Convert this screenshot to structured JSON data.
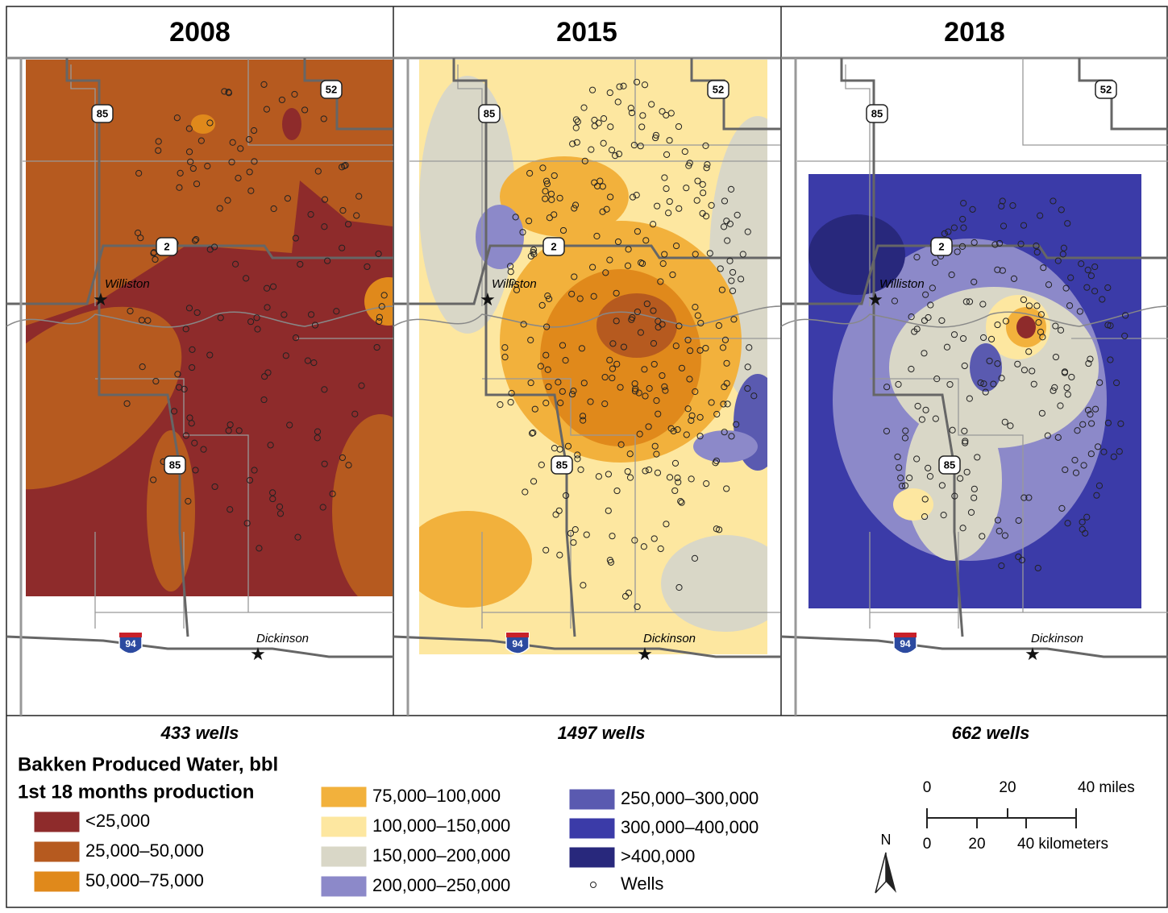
{
  "panels": [
    {
      "title": "2008",
      "wells_label": "433 wells",
      "highways": [
        "85",
        "52",
        "2",
        "85",
        "94"
      ],
      "cities": [
        "Williston",
        "Dickinson"
      ]
    },
    {
      "title": "2015",
      "wells_label": "1497 wells",
      "highways": [
        "85",
        "52",
        "2",
        "85",
        "94"
      ],
      "cities": [
        "Williston",
        "Dickinson"
      ]
    },
    {
      "title": "2018",
      "wells_label": "662 wells",
      "highways": [
        "85",
        "52",
        "2",
        "85",
        "94"
      ],
      "cities": [
        "Williston",
        "Dickinson"
      ]
    }
  ],
  "legend": {
    "title": [
      "Bakken Produced Water, bbl",
      "1st 18 months production"
    ],
    "classes": [
      {
        "label": "<25,000",
        "color": "#8e2b2b"
      },
      {
        "label": "25,000–50,000",
        "color": "#b65a1f"
      },
      {
        "label": "50,000–75,000",
        "color": "#e0891b"
      },
      {
        "label": "75,000–100,000",
        "color": "#f2b13c"
      },
      {
        "label": "100,000–150,000",
        "color": "#fde7a0"
      },
      {
        "label": "150,000–200,000",
        "color": "#d9d7c7"
      },
      {
        "label": "200,000–250,000",
        "color": "#8c89c9"
      },
      {
        "label": "250,000–300,000",
        "color": "#5a5ab0"
      },
      {
        "label": "300,000–400,000",
        "color": "#3b3ba8"
      },
      {
        "label": ">400,000",
        "color": "#28287c"
      }
    ],
    "wells": "Wells"
  },
  "scale_bar": {
    "miles": [
      "0",
      "20",
      "40 miles"
    ],
    "kilometers": [
      "0",
      "20",
      "40 kilometers"
    ]
  },
  "north": "N"
}
